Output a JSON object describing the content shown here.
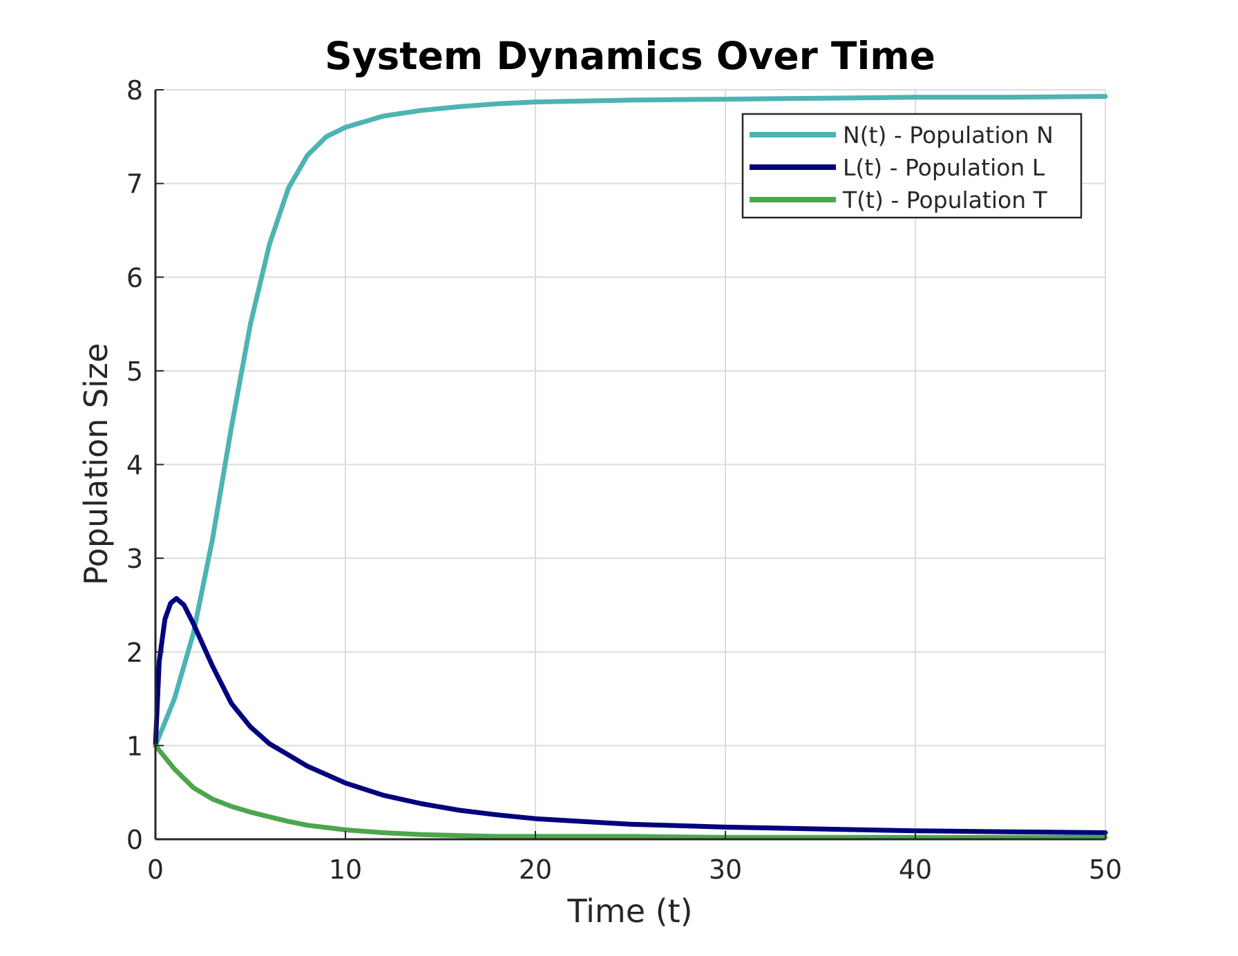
{
  "chart_data": {
    "type": "line",
    "title": "System Dynamics Over Time",
    "xlabel": "Time (t)",
    "ylabel": "Population Size",
    "xlim": [
      0,
      50
    ],
    "ylim": [
      0,
      8
    ],
    "xticks": [
      0,
      10,
      20,
      30,
      40,
      50
    ],
    "yticks": [
      0,
      1,
      2,
      3,
      4,
      5,
      6,
      7,
      8
    ],
    "grid": true,
    "legend_position": "top-right",
    "series": [
      {
        "name": "N(t) - Population N",
        "color": "#4db3b3",
        "x": [
          0,
          1,
          2,
          3,
          4,
          5,
          6,
          7,
          8,
          9,
          10,
          12,
          14,
          16,
          18,
          20,
          25,
          30,
          35,
          40,
          45,
          50
        ],
        "y": [
          1.0,
          1.5,
          2.2,
          3.2,
          4.4,
          5.5,
          6.35,
          6.95,
          7.3,
          7.5,
          7.6,
          7.72,
          7.78,
          7.82,
          7.85,
          7.87,
          7.89,
          7.9,
          7.91,
          7.92,
          7.92,
          7.93
        ]
      },
      {
        "name": "L(t) - Population L",
        "color": "#00007f",
        "x": [
          0,
          0.2,
          0.5,
          0.8,
          1.1,
          1.5,
          2,
          3,
          4,
          5,
          6,
          7,
          8,
          10,
          12,
          14,
          16,
          18,
          20,
          25,
          30,
          35,
          40,
          45,
          50
        ],
        "y": [
          1.0,
          1.9,
          2.35,
          2.52,
          2.57,
          2.5,
          2.3,
          1.85,
          1.45,
          1.2,
          1.02,
          0.9,
          0.78,
          0.6,
          0.47,
          0.38,
          0.31,
          0.26,
          0.22,
          0.16,
          0.13,
          0.11,
          0.09,
          0.08,
          0.07
        ]
      },
      {
        "name": "T(t) - Population T",
        "color": "#4da64d",
        "x": [
          0,
          1,
          2,
          3,
          4,
          5,
          6,
          7,
          8,
          10,
          12,
          14,
          16,
          18,
          20,
          25,
          30,
          35,
          40,
          45,
          50
        ],
        "y": [
          1.0,
          0.75,
          0.55,
          0.43,
          0.35,
          0.29,
          0.24,
          0.19,
          0.15,
          0.1,
          0.07,
          0.05,
          0.04,
          0.03,
          0.03,
          0.03,
          0.02,
          0.02,
          0.02,
          0.02,
          0.02
        ]
      }
    ]
  }
}
